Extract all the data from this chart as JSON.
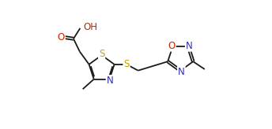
{
  "bg_color": "#ffffff",
  "bond_color": "#1a1a1a",
  "S_color": "#c8a000",
  "N_color": "#3030b0",
  "O_color": "#cc2000",
  "bond_lw": 1.3,
  "font_size": 8.5,
  "fig_width": 3.44,
  "fig_height": 1.64,
  "dpi": 100,
  "xlim": [
    0,
    9.5
  ],
  "ylim": [
    0,
    4.5
  ]
}
